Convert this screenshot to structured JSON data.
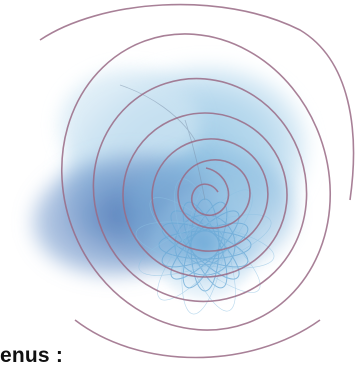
{
  "caption": {
    "text": "enus :"
  },
  "colors": {
    "spiral": "#9a6b86",
    "wash_light": "#b9d9ec",
    "wash_mid": "#7fb6d9",
    "wash_dark": "#4f79b8",
    "flower": "#6aa9d6"
  }
}
